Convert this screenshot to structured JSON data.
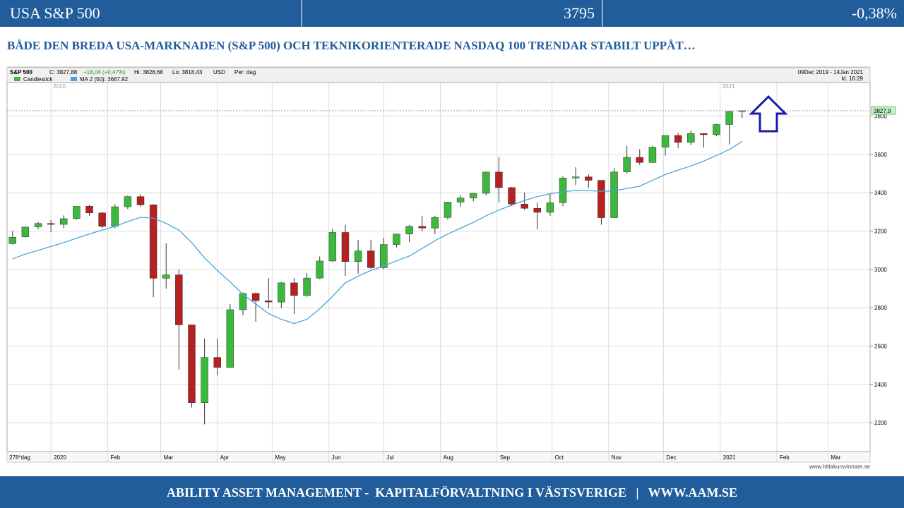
{
  "header": {
    "title": "USA S&P 500",
    "value": "3795",
    "change": "-0,38%"
  },
  "headline": "BÅDE DEN BREDA USA-MARKNADEN (S&P 500) OCH TEKNIKORIENTERADE NASDAQ 100 TRENDAR STABILT UPPÅT…",
  "footer": "ABILITY ASSET MANAGEMENT -  KAPITALFÖRVALTNING I VÄSTSVERIGE   |   WWW.AAM.SE",
  "chart_data": {
    "type": "candlestick",
    "info": {
      "symbol": "S&P 500",
      "close": "C: 3827,88",
      "change": "+18,04 (+0,47%)",
      "high": "Hi: 3828,68",
      "low": "Lo: 3818,43",
      "currency": "USD",
      "period": "Per: dag",
      "range": "09Dec 2019 - 14Jan 2021",
      "time": "kl. 16:29",
      "count": "278*dag",
      "source": "www.hittakursvinnare.se"
    },
    "candle_legend": "Candlestick",
    "up_color": "#3cb83c",
    "down_color": "#b52020",
    "x": [
      -21,
      -14,
      -7,
      0,
      7,
      14,
      21,
      28,
      35,
      42,
      49,
      56,
      63,
      70,
      77,
      84,
      91,
      98,
      105,
      112,
      119,
      126,
      133,
      140,
      147,
      154,
      161,
      168,
      175,
      182,
      189,
      196,
      203,
      210,
      217,
      224,
      231,
      238,
      245,
      252,
      259,
      266,
      273,
      280,
      287,
      294,
      301,
      308,
      315,
      322,
      329,
      336,
      343,
      350,
      357,
      364,
      371,
      378
    ],
    "open": [
      3135,
      3170,
      3222,
      3240,
      3235,
      3265,
      3330,
      3295,
      3225,
      3327,
      3380,
      3337,
      2954,
      2972,
      2711,
      2305,
      2541,
      2489,
      2790,
      2875,
      2837,
      2830,
      2930,
      2864,
      2955,
      3044,
      3193,
      3041,
      3097,
      3009,
      3130,
      3185,
      3225,
      3216,
      3271,
      3351,
      3373,
      3397,
      3508,
      3427,
      3341,
      3319,
      3298,
      3348,
      3477,
      3483,
      3465,
      3270,
      3509,
      3585,
      3558,
      3638,
      3699,
      3663,
      3709,
      3703,
      3756,
      3824
    ],
    "high": [
      3200,
      3225,
      3248,
      3258,
      3282,
      3330,
      3337,
      3300,
      3340,
      3385,
      3393,
      3340,
      3136,
      3000,
      2711,
      2640,
      2640,
      2819,
      2880,
      2880,
      2955,
      2935,
      2955,
      2981,
      3068,
      3211,
      3233,
      3155,
      3155,
      3165,
      3186,
      3233,
      3280,
      3280,
      3352,
      3387,
      3399,
      3510,
      3588,
      3430,
      3402,
      3349,
      3393,
      3486,
      3533,
      3496,
      3465,
      3529,
      3645,
      3628,
      3645,
      3699,
      3712,
      3726,
      3711,
      3760,
      3826,
      3829
    ],
    "low": [
      3130,
      3166,
      3210,
      3195,
      3215,
      3260,
      3280,
      3215,
      3215,
      3315,
      3328,
      2855,
      2900,
      2478,
      2280,
      2192,
      2447,
      2489,
      2761,
      2727,
      2797,
      2798,
      2767,
      2857,
      2950,
      3038,
      2966,
      2978,
      3004,
      3001,
      3115,
      3142,
      3200,
      3184,
      3260,
      3328,
      3355,
      3387,
      3349,
      3330,
      3310,
      3209,
      3280,
      3330,
      3440,
      3425,
      3233,
      3270,
      3500,
      3545,
      3555,
      3594,
      3633,
      3648,
      3636,
      3695,
      3652,
      3790
    ],
    "close": [
      3168,
      3221,
      3240,
      3235,
      3265,
      3329,
      3295,
      3225,
      3327,
      3380,
      3337,
      2954,
      2972,
      2711,
      2305,
      2541,
      2489,
      2790,
      2875,
      2837,
      2830,
      2930,
      2864,
      2955,
      3044,
      3193,
      3041,
      3097,
      3009,
      3130,
      3185,
      3225,
      3216,
      3271,
      3351,
      3373,
      3397,
      3508,
      3427,
      3341,
      3319,
      3298,
      3348,
      3477,
      3483,
      3465,
      3270,
      3509,
      3585,
      3558,
      3638,
      3699,
      3663,
      3709,
      3703,
      3756,
      3824,
      3828
    ],
    "ma": {
      "name": "MA 2 (50): 3667.92",
      "color": "#4aa3df",
      "values": [
        3055,
        3080,
        3100,
        3120,
        3140,
        3163,
        3185,
        3205,
        3225,
        3250,
        3272,
        3268,
        3240,
        3205,
        3140,
        3060,
        2995,
        2935,
        2870,
        2820,
        2770,
        2740,
        2718,
        2740,
        2795,
        2860,
        2930,
        2965,
        2995,
        3018,
        3045,
        3070,
        3110,
        3150,
        3185,
        3215,
        3245,
        3280,
        3310,
        3335,
        3360,
        3380,
        3395,
        3405,
        3412,
        3411,
        3408,
        3410,
        3422,
        3435,
        3465,
        3495,
        3518,
        3540,
        3565,
        3595,
        3625,
        3668
      ]
    },
    "last_price": {
      "value": 3827.9,
      "label": "3827,9"
    },
    "xlim": [
      -24,
      448
    ],
    "xticks": [
      {
        "value": 0,
        "label": "2020"
      },
      {
        "value": 31,
        "label": "Feb"
      },
      {
        "value": 60,
        "label": "Mar"
      },
      {
        "value": 91,
        "label": "Apr"
      },
      {
        "value": 121,
        "label": "May"
      },
      {
        "value": 152,
        "label": "Jun"
      },
      {
        "value": 182,
        "label": "Jul"
      },
      {
        "value": 213,
        "label": "Aug"
      },
      {
        "value": 244,
        "label": "Sep"
      },
      {
        "value": 274,
        "label": "Oct"
      },
      {
        "value": 305,
        "label": "Nov"
      },
      {
        "value": 335,
        "label": "Dec"
      },
      {
        "value": 366,
        "label": "2021"
      },
      {
        "value": 397,
        "label": "Feb"
      },
      {
        "value": 425,
        "label": "Mar"
      }
    ],
    "year_marks": [
      {
        "value": 0,
        "label": "2020"
      },
      {
        "value": 366,
        "label": "2021"
      }
    ],
    "ylim": [
      2050,
      3975
    ],
    "yticks": [
      2200,
      2400,
      2600,
      2800,
      3000,
      3200,
      3400,
      3600,
      3800
    ],
    "grid": true
  }
}
